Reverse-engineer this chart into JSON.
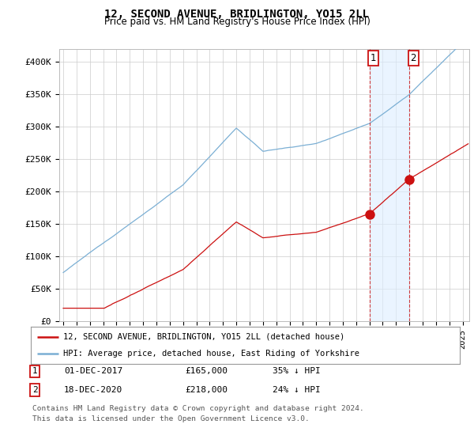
{
  "title": "12, SECOND AVENUE, BRIDLINGTON, YO15 2LL",
  "subtitle": "Price paid vs. HM Land Registry's House Price Index (HPI)",
  "ylim": [
    0,
    420000
  ],
  "yticks": [
    0,
    50000,
    100000,
    150000,
    200000,
    250000,
    300000,
    350000,
    400000
  ],
  "ytick_labels": [
    "£0",
    "£50K",
    "£100K",
    "£150K",
    "£200K",
    "£250K",
    "£300K",
    "£350K",
    "£400K"
  ],
  "hpi_color": "#7bafd4",
  "price_color": "#cc1111",
  "marker1_year": 2018.0,
  "marker2_year": 2021.0,
  "marker1_price": 165000,
  "marker2_price": 218000,
  "legend_line1": "12, SECOND AVENUE, BRIDLINGTON, YO15 2LL (detached house)",
  "legend_line2": "HPI: Average price, detached house, East Riding of Yorkshire",
  "row1_num": "1",
  "row1_date": "01-DEC-2017",
  "row1_price": "£165,000",
  "row1_pct": "35% ↓ HPI",
  "row2_num": "2",
  "row2_date": "18-DEC-2020",
  "row2_price": "£218,000",
  "row2_pct": "24% ↓ HPI",
  "footnote1": "Contains HM Land Registry data © Crown copyright and database right 2024.",
  "footnote2": "This data is licensed under the Open Government Licence v3.0.",
  "background_color": "#ffffff",
  "grid_color": "#cccccc",
  "shaded_color": "#ddeeff",
  "xlim_left": 1994.7,
  "xlim_right": 2025.5
}
